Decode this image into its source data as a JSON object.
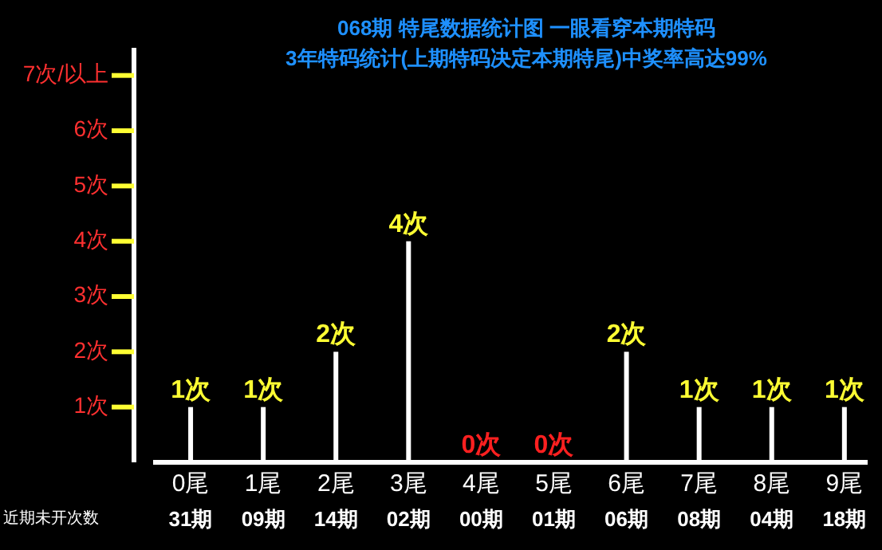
{
  "chart_data": {
    "type": "bar",
    "title": "068期 特尾数据统计图 一眼看穿本期特码",
    "subtitle": "3年特码统计(上期特码决定本期特尾)中奖率高达99%",
    "categories": [
      "0尾",
      "1尾",
      "2尾",
      "3尾",
      "4尾",
      "5尾",
      "6尾",
      "7尾",
      "8尾",
      "9尾"
    ],
    "values": [
      1,
      1,
      2,
      4,
      0,
      0,
      2,
      1,
      1,
      1
    ],
    "value_labels": [
      "1次",
      "1次",
      "2次",
      "4次",
      "0次",
      "0次",
      "2次",
      "1次",
      "1次",
      "1次"
    ],
    "color": "#ffffff",
    "ylim": [
      0,
      7.5
    ],
    "yticks": [
      {
        "value": 1,
        "label": "1次"
      },
      {
        "value": 2,
        "label": "2次"
      },
      {
        "value": 3,
        "label": "3次"
      },
      {
        "value": 4,
        "label": "4次"
      },
      {
        "value": 5,
        "label": "5次"
      },
      {
        "value": 6,
        "label": "6次"
      },
      {
        "value": 7,
        "label": "7次/以上"
      }
    ],
    "annotations": [
      "近期未开次数",
      "31期",
      "09期",
      "14期",
      "02期",
      "00期",
      "01期",
      "06期",
      "08期",
      "04期",
      "18期"
    ]
  }
}
